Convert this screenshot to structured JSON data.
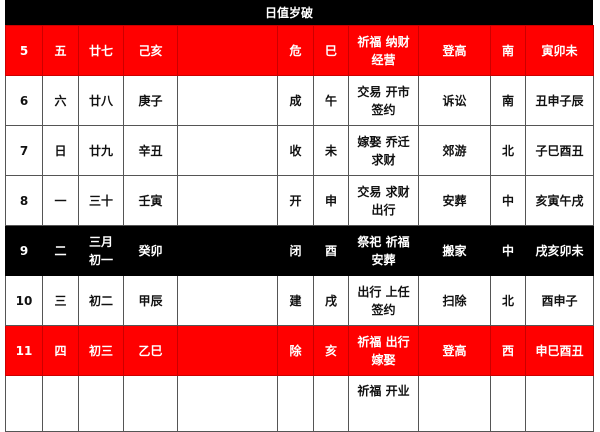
{
  "header": {
    "title": "日值岁破"
  },
  "rows": [
    {
      "day": "5",
      "week": "五",
      "lunar": "廿七",
      "ganzhi": "己亥",
      "note": "",
      "officer": "危",
      "branch": "巳",
      "yi": "祈福 纳财\n经营",
      "ji": "登高",
      "dir": "南",
      "hours": "寅卯未",
      "style": "red"
    },
    {
      "day": "6",
      "week": "六",
      "lunar": "廿八",
      "ganzhi": "庚子",
      "note": "",
      "officer": "成",
      "branch": "午",
      "yi": "交易 开市\n签约",
      "ji": "诉讼",
      "dir": "南",
      "hours": "丑申子辰",
      "style": "white"
    },
    {
      "day": "7",
      "week": "日",
      "lunar": "廿九",
      "ganzhi": "辛丑",
      "note": "",
      "officer": "收",
      "branch": "未",
      "yi": "嫁娶 乔迁\n求财",
      "ji": "郊游",
      "dir": "北",
      "hours": "子巳酉丑",
      "style": "white"
    },
    {
      "day": "8",
      "week": "一",
      "lunar": "三十",
      "ganzhi": "壬寅",
      "note": "",
      "officer": "开",
      "branch": "申",
      "yi": "交易 求财\n出行",
      "ji": "安葬",
      "dir": "中",
      "hours": "亥寅午戌",
      "style": "white"
    },
    {
      "day": "9",
      "week": "二",
      "lunar": "三月\n初一",
      "ganzhi": "癸卯",
      "note": "",
      "officer": "闭",
      "branch": "酉",
      "yi": "祭祀 祈福\n安葬",
      "ji": "搬家",
      "dir": "中",
      "hours": "戌亥卯未",
      "style": "black"
    },
    {
      "day": "10",
      "week": "三",
      "lunar": "初二",
      "ganzhi": "甲辰",
      "note": "",
      "officer": "建",
      "branch": "戌",
      "yi": "出行 上任\n签约",
      "ji": "扫除",
      "dir": "北",
      "hours": "酉申子",
      "style": "white"
    },
    {
      "day": "11",
      "week": "四",
      "lunar": "初三",
      "ganzhi": "乙巳",
      "note": "",
      "officer": "除",
      "branch": "亥",
      "yi": "祈福 出行\n嫁娶",
      "ji": "登高",
      "dir": "西",
      "hours": "申巳酉丑",
      "style": "red"
    },
    {
      "day": "",
      "week": "",
      "lunar": "",
      "ganzhi": "",
      "note": "",
      "officer": "",
      "branch": "",
      "yi": "祈福 开业",
      "ji": "",
      "dir": "",
      "hours": "",
      "style": "white"
    }
  ]
}
